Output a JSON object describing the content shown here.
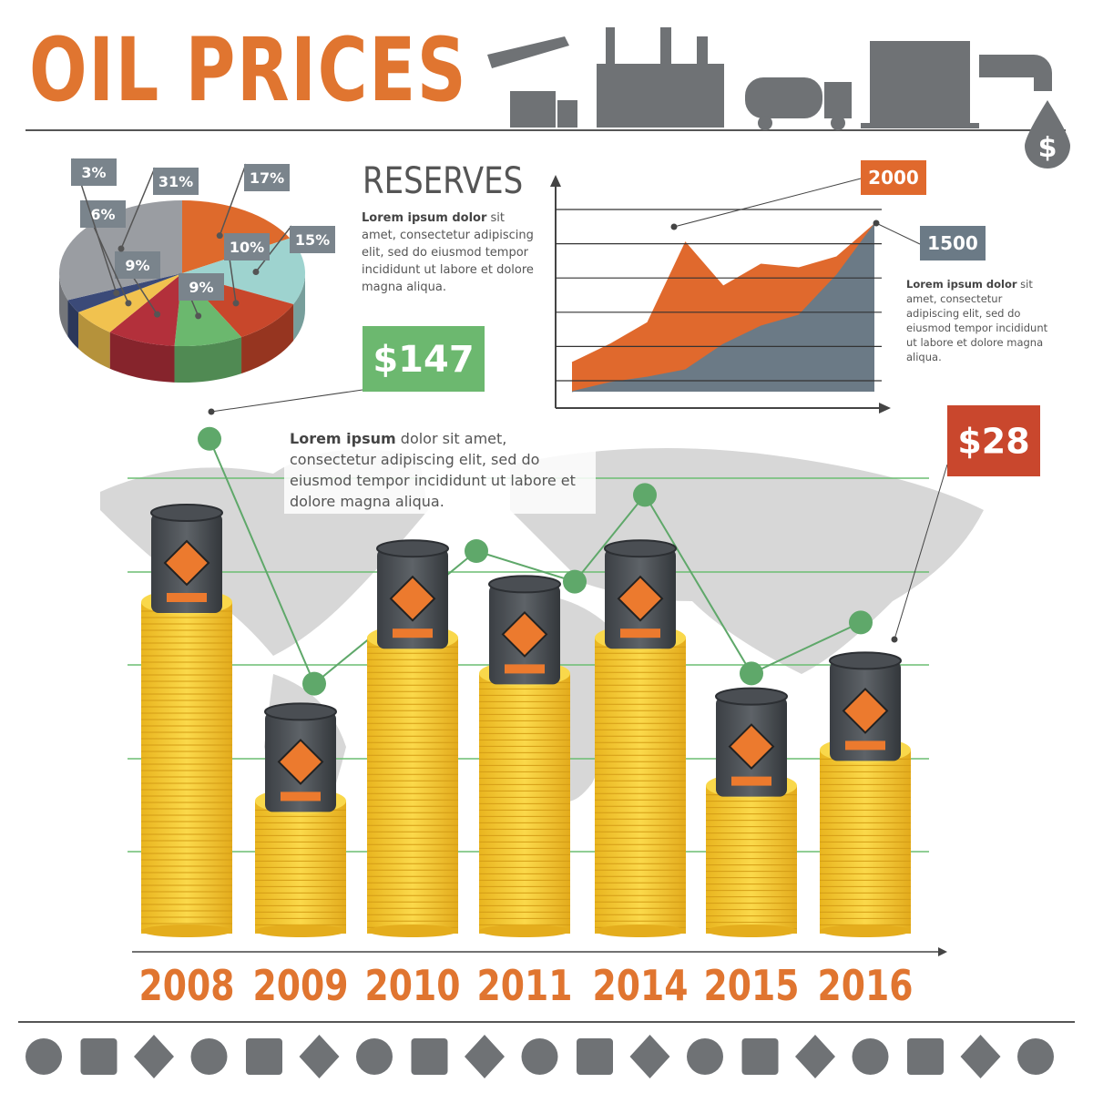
{
  "title": "OIL PRICES",
  "reserves": {
    "heading": "RESERVES",
    "text_bold": "Lorem ipsum dolor",
    "text": " sit amet, consectetur adipiscing elit, sed do eiusmod tempor incididunt ut labore et dolore magna aliqua."
  },
  "side_note": {
    "text_bold": "Lorem ipsum dolor",
    "text": " sit amet, consectetur adipiscing elit, sed do eiusmod tempor incididunt ut labore et dolore magna aliqua."
  },
  "map_note": {
    "text_bold": "Lorem ipsum",
    "text": " dolor sit amet, consectetur adipiscing elit, sed do eiusmod tempor incididunt ut labore et dolore magna aliqua."
  },
  "chart_data": [
    {
      "type": "pie",
      "values": [
        17,
        15,
        10,
        9,
        9,
        6,
        3,
        31
      ],
      "value_labels": [
        "17%",
        "15%",
        "10%",
        "9%",
        "9%",
        "6%",
        "3%",
        "31%"
      ],
      "colors": [
        "#de6a2c",
        "#9ed3cf",
        "#c8472b",
        "#6bb86e",
        "#b3303b",
        "#f1c24f",
        "#3b4a78",
        "#9a9da2"
      ]
    },
    {
      "type": "area",
      "x": [
        0,
        1,
        2,
        3,
        4,
        5,
        6,
        7,
        8
      ],
      "xlim": [
        0,
        8
      ],
      "ylim": [
        0,
        10
      ],
      "series": [
        {
          "color": "#e0692d",
          "values": [
            1.6,
            2.6,
            3.8,
            8.2,
            5.8,
            7,
            6.8,
            7.4,
            9.2
          ]
        },
        {
          "color": "#6b7a86",
          "values": [
            0,
            0.5,
            0.8,
            1.2,
            2.6,
            3.6,
            4.2,
            6.4,
            9.2
          ]
        }
      ],
      "annotations": [
        {
          "text": "2000",
          "color": "#e0692d"
        },
        {
          "text": "1500",
          "color": "#6b7a86"
        }
      ]
    },
    {
      "type": "bar",
      "categories": [
        "2008",
        "2009",
        "2010",
        "2011",
        "2014",
        "2015",
        "2016"
      ],
      "ylim": [
        0,
        100
      ],
      "series": [
        {
          "color": "#f3c12e",
          "values": [
            65,
            26,
            58,
            51,
            58,
            29,
            36
          ]
        },
        {
          "type": "line",
          "color": "#5fa86a",
          "values": [
            97,
            49,
            75,
            69,
            86,
            51,
            61
          ]
        }
      ],
      "annotations": [
        {
          "text": "$147",
          "color": "#6cb86f"
        },
        {
          "text": "$28",
          "color": "#c9472d"
        }
      ]
    }
  ]
}
